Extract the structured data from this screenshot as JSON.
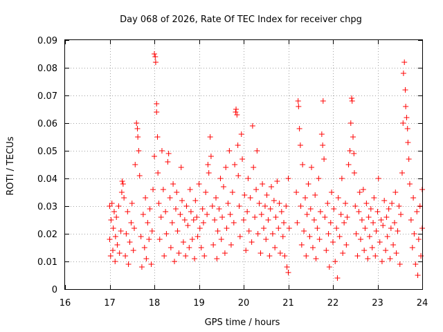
{
  "chart_data": {
    "type": "scatter",
    "title": "Day 068 of 2026, Rate Of TEC Index for receiver chpg",
    "xlabel": "GPS time / hours",
    "ylabel": "ROTI / TECUs",
    "xlim": [
      16,
      24
    ],
    "ylim": [
      0,
      0.09
    ],
    "x_ticks": [
      16,
      17,
      18,
      19,
      20,
      21,
      22,
      23,
      24
    ],
    "x_tick_labels": [
      "16",
      "17",
      "18",
      "19",
      "20",
      "21",
      "22",
      "23",
      "24"
    ],
    "y_ticks": [
      0,
      0.01,
      0.02,
      0.03,
      0.04,
      0.05,
      0.06,
      0.07,
      0.08,
      0.09
    ],
    "y_tick_labels": [
      "0",
      "0.01",
      "0.02",
      "0.03",
      "0.04",
      "0.05",
      "0.06",
      "0.07",
      "0.08",
      "0.09"
    ],
    "grid": true,
    "marker": "+",
    "series": [
      {
        "name": "ROTI",
        "color": "#ff0000",
        "points": [
          [
            17.0,
            0.03
          ],
          [
            17.0,
            0.018
          ],
          [
            17.02,
            0.012
          ],
          [
            17.03,
            0.025
          ],
          [
            17.05,
            0.031
          ],
          [
            17.07,
            0.014
          ],
          [
            17.08,
            0.022
          ],
          [
            17.1,
            0.028
          ],
          [
            17.12,
            0.01
          ],
          [
            17.13,
            0.019
          ],
          [
            17.15,
            0.026
          ],
          [
            17.17,
            0.016
          ],
          [
            17.2,
            0.03
          ],
          [
            17.22,
            0.013
          ],
          [
            17.25,
            0.021
          ],
          [
            17.27,
            0.035
          ],
          [
            17.28,
            0.039
          ],
          [
            17.3,
            0.038
          ],
          [
            17.32,
            0.033
          ],
          [
            17.35,
            0.012
          ],
          [
            17.37,
            0.02
          ],
          [
            17.4,
            0.028
          ],
          [
            17.42,
            0.009
          ],
          [
            17.45,
            0.017
          ],
          [
            17.48,
            0.024
          ],
          [
            17.5,
            0.031
          ],
          [
            17.53,
            0.014
          ],
          [
            17.55,
            0.022
          ],
          [
            17.57,
            0.045
          ],
          [
            17.6,
            0.06
          ],
          [
            17.62,
            0.058
          ],
          [
            17.63,
            0.055
          ],
          [
            17.65,
            0.05
          ],
          [
            17.67,
            0.041
          ],
          [
            17.7,
            0.019
          ],
          [
            17.72,
            0.008
          ],
          [
            17.75,
            0.027
          ],
          [
            17.78,
            0.015
          ],
          [
            17.8,
            0.033
          ],
          [
            17.82,
            0.011
          ],
          [
            17.85,
            0.024
          ],
          [
            17.88,
            0.018
          ],
          [
            17.9,
            0.029
          ],
          [
            17.93,
            0.009
          ],
          [
            17.95,
            0.021
          ],
          [
            17.97,
            0.036
          ],
          [
            18.0,
            0.048
          ],
          [
            18.0,
            0.085
          ],
          [
            18.02,
            0.084
          ],
          [
            18.03,
            0.082
          ],
          [
            18.05,
            0.067
          ],
          [
            18.05,
            0.064
          ],
          [
            18.07,
            0.055
          ],
          [
            18.08,
            0.042
          ],
          [
            18.1,
            0.031
          ],
          [
            18.12,
            0.018
          ],
          [
            18.15,
            0.026
          ],
          [
            18.17,
            0.05
          ],
          [
            18.2,
            0.036
          ],
          [
            18.22,
            0.012
          ],
          [
            18.25,
            0.028
          ],
          [
            18.27,
            0.02
          ],
          [
            18.3,
            0.046
          ],
          [
            18.32,
            0.049
          ],
          [
            18.35,
            0.033
          ],
          [
            18.37,
            0.015
          ],
          [
            18.4,
            0.024
          ],
          [
            18.42,
            0.038
          ],
          [
            18.45,
            0.01
          ],
          [
            18.48,
            0.029
          ],
          [
            18.5,
            0.035
          ],
          [
            18.52,
            0.021
          ],
          [
            18.55,
            0.013
          ],
          [
            18.58,
            0.027
          ],
          [
            18.6,
            0.044
          ],
          [
            18.62,
            0.032
          ],
          [
            18.65,
            0.017
          ],
          [
            18.68,
            0.025
          ],
          [
            18.7,
            0.012
          ],
          [
            18.72,
            0.03
          ],
          [
            18.75,
            0.023
          ],
          [
            18.78,
            0.015
          ],
          [
            18.8,
            0.036
          ],
          [
            18.82,
            0.028
          ],
          [
            18.85,
            0.018
          ],
          [
            18.88,
            0.025
          ],
          [
            18.9,
            0.011
          ],
          [
            18.92,
            0.032
          ],
          [
            18.95,
            0.026
          ],
          [
            18.97,
            0.019
          ],
          [
            19.0,
            0.038
          ],
          [
            19.02,
            0.022
          ],
          [
            19.05,
            0.015
          ],
          [
            19.08,
            0.029
          ],
          [
            19.1,
            0.024
          ],
          [
            19.12,
            0.012
          ],
          [
            19.15,
            0.035
          ],
          [
            19.18,
            0.027
          ],
          [
            19.2,
            0.045
          ],
          [
            19.22,
            0.042
          ],
          [
            19.25,
            0.055
          ],
          [
            19.27,
            0.048
          ],
          [
            19.3,
            0.03
          ],
          [
            19.32,
            0.016
          ],
          [
            19.35,
            0.025
          ],
          [
            19.38,
            0.033
          ],
          [
            19.4,
            0.011
          ],
          [
            19.42,
            0.021
          ],
          [
            19.45,
            0.029
          ],
          [
            19.48,
            0.04
          ],
          [
            19.5,
            0.018
          ],
          [
            19.52,
            0.026
          ],
          [
            19.55,
            0.037
          ],
          [
            19.58,
            0.013
          ],
          [
            19.6,
            0.044
          ],
          [
            19.62,
            0.022
          ],
          [
            19.65,
            0.031
          ],
          [
            19.68,
            0.05
          ],
          [
            19.7,
            0.027
          ],
          [
            19.72,
            0.016
          ],
          [
            19.75,
            0.035
          ],
          [
            19.78,
            0.024
          ],
          [
            19.8,
            0.045
          ],
          [
            19.82,
            0.064
          ],
          [
            19.83,
            0.065
          ],
          [
            19.85,
            0.063
          ],
          [
            19.87,
            0.052
          ],
          [
            19.88,
            0.041
          ],
          [
            19.9,
            0.03
          ],
          [
            19.92,
            0.019
          ],
          [
            19.95,
            0.056
          ],
          [
            19.97,
            0.047
          ],
          [
            20.0,
            0.025
          ],
          [
            20.02,
            0.034
          ],
          [
            20.05,
            0.014
          ],
          [
            20.08,
            0.028
          ],
          [
            20.1,
            0.04
          ],
          [
            20.12,
            0.021
          ],
          [
            20.15,
            0.033
          ],
          [
            20.18,
            0.017
          ],
          [
            20.2,
            0.059
          ],
          [
            20.22,
            0.044
          ],
          [
            20.25,
            0.026
          ],
          [
            20.28,
            0.036
          ],
          [
            20.3,
            0.05
          ],
          [
            20.32,
            0.02
          ],
          [
            20.35,
            0.031
          ],
          [
            20.38,
            0.013
          ],
          [
            20.4,
            0.027
          ],
          [
            20.42,
            0.038
          ],
          [
            20.45,
            0.022
          ],
          [
            20.48,
            0.03
          ],
          [
            20.5,
            0.018
          ],
          [
            20.52,
            0.034
          ],
          [
            20.55,
            0.025
          ],
          [
            20.58,
            0.012
          ],
          [
            20.6,
            0.029
          ],
          [
            20.62,
            0.037
          ],
          [
            20.65,
            0.02
          ],
          [
            20.68,
            0.032
          ],
          [
            20.7,
            0.015
          ],
          [
            20.72,
            0.026
          ],
          [
            20.75,
            0.039
          ],
          [
            20.78,
            0.022
          ],
          [
            20.8,
            0.031
          ],
          [
            20.82,
            0.013
          ],
          [
            20.85,
            0.028
          ],
          [
            20.88,
            0.019
          ],
          [
            20.9,
            0.024
          ],
          [
            20.92,
            0.012
          ],
          [
            20.95,
            0.03
          ],
          [
            20.97,
            0.008
          ],
          [
            21.0,
            0.006
          ],
          [
            21.0,
            0.04
          ],
          [
            21.02,
            0.022
          ],
          [
            21.18,
            0.035
          ],
          [
            21.2,
            0.024
          ],
          [
            21.22,
            0.068
          ],
          [
            21.23,
            0.066
          ],
          [
            21.25,
            0.058
          ],
          [
            21.27,
            0.052
          ],
          [
            21.28,
            0.03
          ],
          [
            21.3,
            0.016
          ],
          [
            21.32,
            0.045
          ],
          [
            21.35,
            0.021
          ],
          [
            21.38,
            0.033
          ],
          [
            21.4,
            0.012
          ],
          [
            21.42,
            0.027
          ],
          [
            21.45,
            0.038
          ],
          [
            21.48,
            0.019
          ],
          [
            21.5,
            0.029
          ],
          [
            21.52,
            0.044
          ],
          [
            21.55,
            0.015
          ],
          [
            21.58,
            0.025
          ],
          [
            21.6,
            0.034
          ],
          [
            21.62,
            0.011
          ],
          [
            21.65,
            0.022
          ],
          [
            21.68,
            0.04
          ],
          [
            21.7,
            0.018
          ],
          [
            21.72,
            0.028
          ],
          [
            21.75,
            0.056
          ],
          [
            21.77,
            0.052
          ],
          [
            21.78,
            0.068
          ],
          [
            21.8,
            0.047
          ],
          [
            21.82,
            0.026
          ],
          [
            21.85,
            0.014
          ],
          [
            21.88,
            0.031
          ],
          [
            21.9,
            0.02
          ],
          [
            21.92,
            0.008
          ],
          [
            21.95,
            0.024
          ],
          [
            21.97,
            0.035
          ],
          [
            22.0,
            0.017
          ],
          [
            22.02,
            0.029
          ],
          [
            22.05,
            0.01
          ],
          [
            22.08,
            0.022
          ],
          [
            22.1,
            0.004
          ],
          [
            22.12,
            0.033
          ],
          [
            22.15,
            0.019
          ],
          [
            22.18,
            0.027
          ],
          [
            22.2,
            0.04
          ],
          [
            22.22,
            0.013
          ],
          [
            22.25,
            0.024
          ],
          [
            22.28,
            0.031
          ],
          [
            22.3,
            0.016
          ],
          [
            22.32,
            0.026
          ],
          [
            22.35,
            0.045
          ],
          [
            22.38,
            0.05
          ],
          [
            22.4,
            0.06
          ],
          [
            22.42,
            0.069
          ],
          [
            22.43,
            0.068
          ],
          [
            22.45,
            0.055
          ],
          [
            22.47,
            0.049
          ],
          [
            22.48,
            0.042
          ],
          [
            22.5,
            0.03
          ],
          [
            22.52,
            0.02
          ],
          [
            22.55,
            0.012
          ],
          [
            22.58,
            0.028
          ],
          [
            22.6,
            0.035
          ],
          [
            22.62,
            0.018
          ],
          [
            22.65,
            0.025
          ],
          [
            22.68,
            0.036
          ],
          [
            22.7,
            0.014
          ],
          [
            22.72,
            0.022
          ],
          [
            22.75,
            0.031
          ],
          [
            22.78,
            0.011
          ],
          [
            22.8,
            0.026
          ],
          [
            22.82,
            0.019
          ],
          [
            22.85,
            0.029
          ],
          [
            22.88,
            0.015
          ],
          [
            22.9,
            0.024
          ],
          [
            22.92,
            0.033
          ],
          [
            22.95,
            0.012
          ],
          [
            22.97,
            0.021
          ],
          [
            23.0,
            0.028
          ],
          [
            23.02,
            0.04
          ],
          [
            23.05,
            0.017
          ],
          [
            23.08,
            0.025
          ],
          [
            23.1,
            0.01
          ],
          [
            23.12,
            0.023
          ],
          [
            23.15,
            0.032
          ],
          [
            23.18,
            0.014
          ],
          [
            23.2,
            0.026
          ],
          [
            23.22,
            0.019
          ],
          [
            23.25,
            0.029
          ],
          [
            23.28,
            0.011
          ],
          [
            23.3,
            0.022
          ],
          [
            23.32,
            0.031
          ],
          [
            23.35,
            0.016
          ],
          [
            23.38,
            0.024
          ],
          [
            23.4,
            0.035
          ],
          [
            23.42,
            0.013
          ],
          [
            23.45,
            0.021
          ],
          [
            23.48,
            0.03
          ],
          [
            23.5,
            0.009
          ],
          [
            23.52,
            0.027
          ],
          [
            23.55,
            0.042
          ],
          [
            23.57,
            0.06
          ],
          [
            23.58,
            0.078
          ],
          [
            23.6,
            0.082
          ],
          [
            23.62,
            0.072
          ],
          [
            23.63,
            0.066
          ],
          [
            23.65,
            0.062
          ],
          [
            23.67,
            0.058
          ],
          [
            23.68,
            0.053
          ],
          [
            23.7,
            0.047
          ],
          [
            23.72,
            0.038
          ],
          [
            23.75,
            0.025
          ],
          [
            23.78,
            0.015
          ],
          [
            23.8,
            0.033
          ],
          [
            23.82,
            0.02
          ],
          [
            23.85,
            0.009
          ],
          [
            23.88,
            0.028
          ],
          [
            23.9,
            0.005
          ],
          [
            23.92,
            0.018
          ],
          [
            23.95,
            0.03
          ],
          [
            23.97,
            0.012
          ],
          [
            24.0,
            0.036
          ],
          [
            24.0,
            0.022
          ]
        ]
      }
    ]
  }
}
